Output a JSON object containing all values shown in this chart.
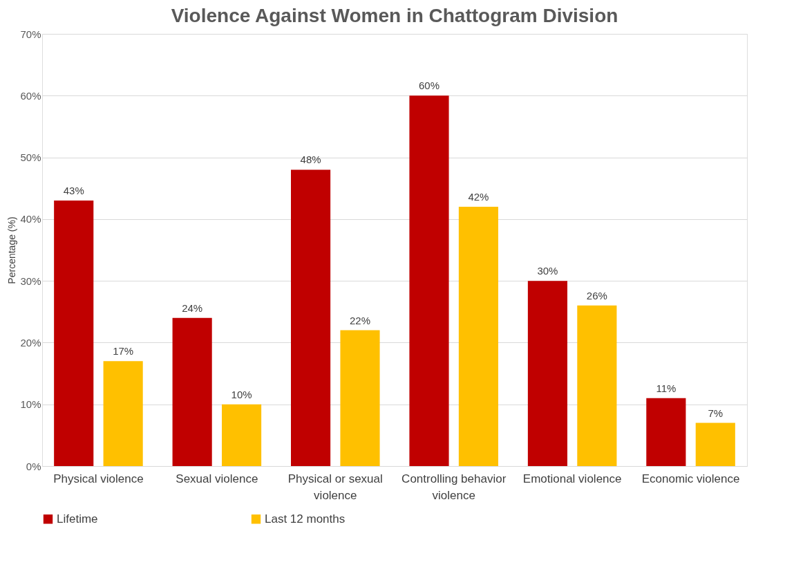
{
  "chart_data": {
    "type": "bar",
    "title": "Violence Against Women in Chattogram Division",
    "ylabel": "Percentage (%)",
    "categories": [
      "Physical violence",
      "Sexual violence",
      "Physical or sexual violence",
      "Controlling behavior violence",
      "Emotional violence",
      "Economic violence"
    ],
    "series": [
      {
        "name": "Lifetime",
        "color": "#c00000",
        "values": [
          43,
          24,
          48,
          60,
          30,
          11
        ],
        "value_labels": [
          "43%",
          "24%",
          "48%",
          "60%",
          "30%",
          "11%"
        ]
      },
      {
        "name": "Last 12 months",
        "color": "#ffc000",
        "values": [
          17,
          10,
          22,
          42,
          26,
          7
        ],
        "value_labels": [
          "17%",
          "10%",
          "22%",
          "42%",
          "26%",
          "7%"
        ]
      }
    ],
    "ylim": [
      0,
      70
    ],
    "yticks": [
      {
        "value": 0,
        "label": "0%"
      },
      {
        "value": 10,
        "label": "10%"
      },
      {
        "value": 20,
        "label": "20%"
      },
      {
        "value": 30,
        "label": "30%"
      },
      {
        "value": 40,
        "label": "40%"
      },
      {
        "value": 50,
        "label": "50%"
      },
      {
        "value": 60,
        "label": "60%"
      },
      {
        "value": 70,
        "label": "70%"
      }
    ],
    "grid": "y",
    "legend": "bottom"
  }
}
